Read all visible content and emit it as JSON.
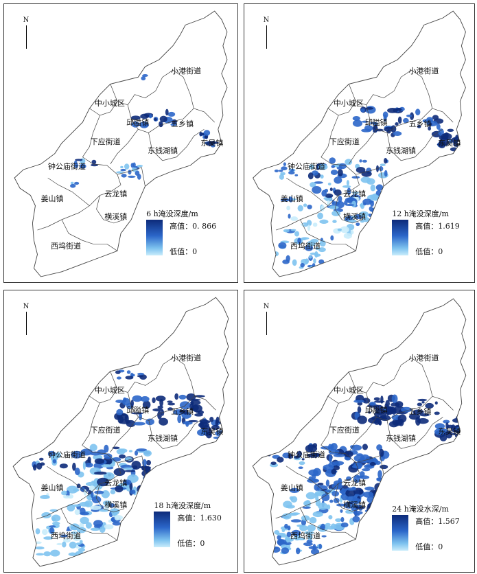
{
  "north_label": "N",
  "towns": {
    "xiaogang": "小港街道",
    "zhongxiao": "中小城区",
    "qiuai": "邱隘镇",
    "wuxiang": "五乡镇",
    "dongwu": "东吴镇",
    "xiaying": "下应街道",
    "dongqianhu": "东钱湖镇",
    "zhonggongmiao": "钟公庙街道",
    "yunlong": "云龙镇",
    "jiangshan": "姜山镇",
    "hengxi": "横溪镇",
    "xiwu": "西坞街道"
  },
  "panels": [
    {
      "id": "6h",
      "legend_title": "6 h淹没深度/m",
      "high_label": "高值：0. 866",
      "low_label": "低值：0"
    },
    {
      "id": "12h",
      "legend_title": "12 h淹没深度/m",
      "high_label": "高值：1.619",
      "low_label": "低值：0"
    },
    {
      "id": "18h",
      "legend_title": "18 h淹没深度/m",
      "high_label": "高值：1.630",
      "low_label": "低值：0"
    },
    {
      "id": "24h",
      "legend_title": "24 h淹没水深/m",
      "high_label": "高值：1.567",
      "low_label": "低值：0"
    }
  ],
  "colors": {
    "high": "#0d2b7a",
    "mid": "#2b66c9",
    "low": "#7ec3ef",
    "lowest": "#c9ecfb",
    "boundary": "#444444"
  }
}
